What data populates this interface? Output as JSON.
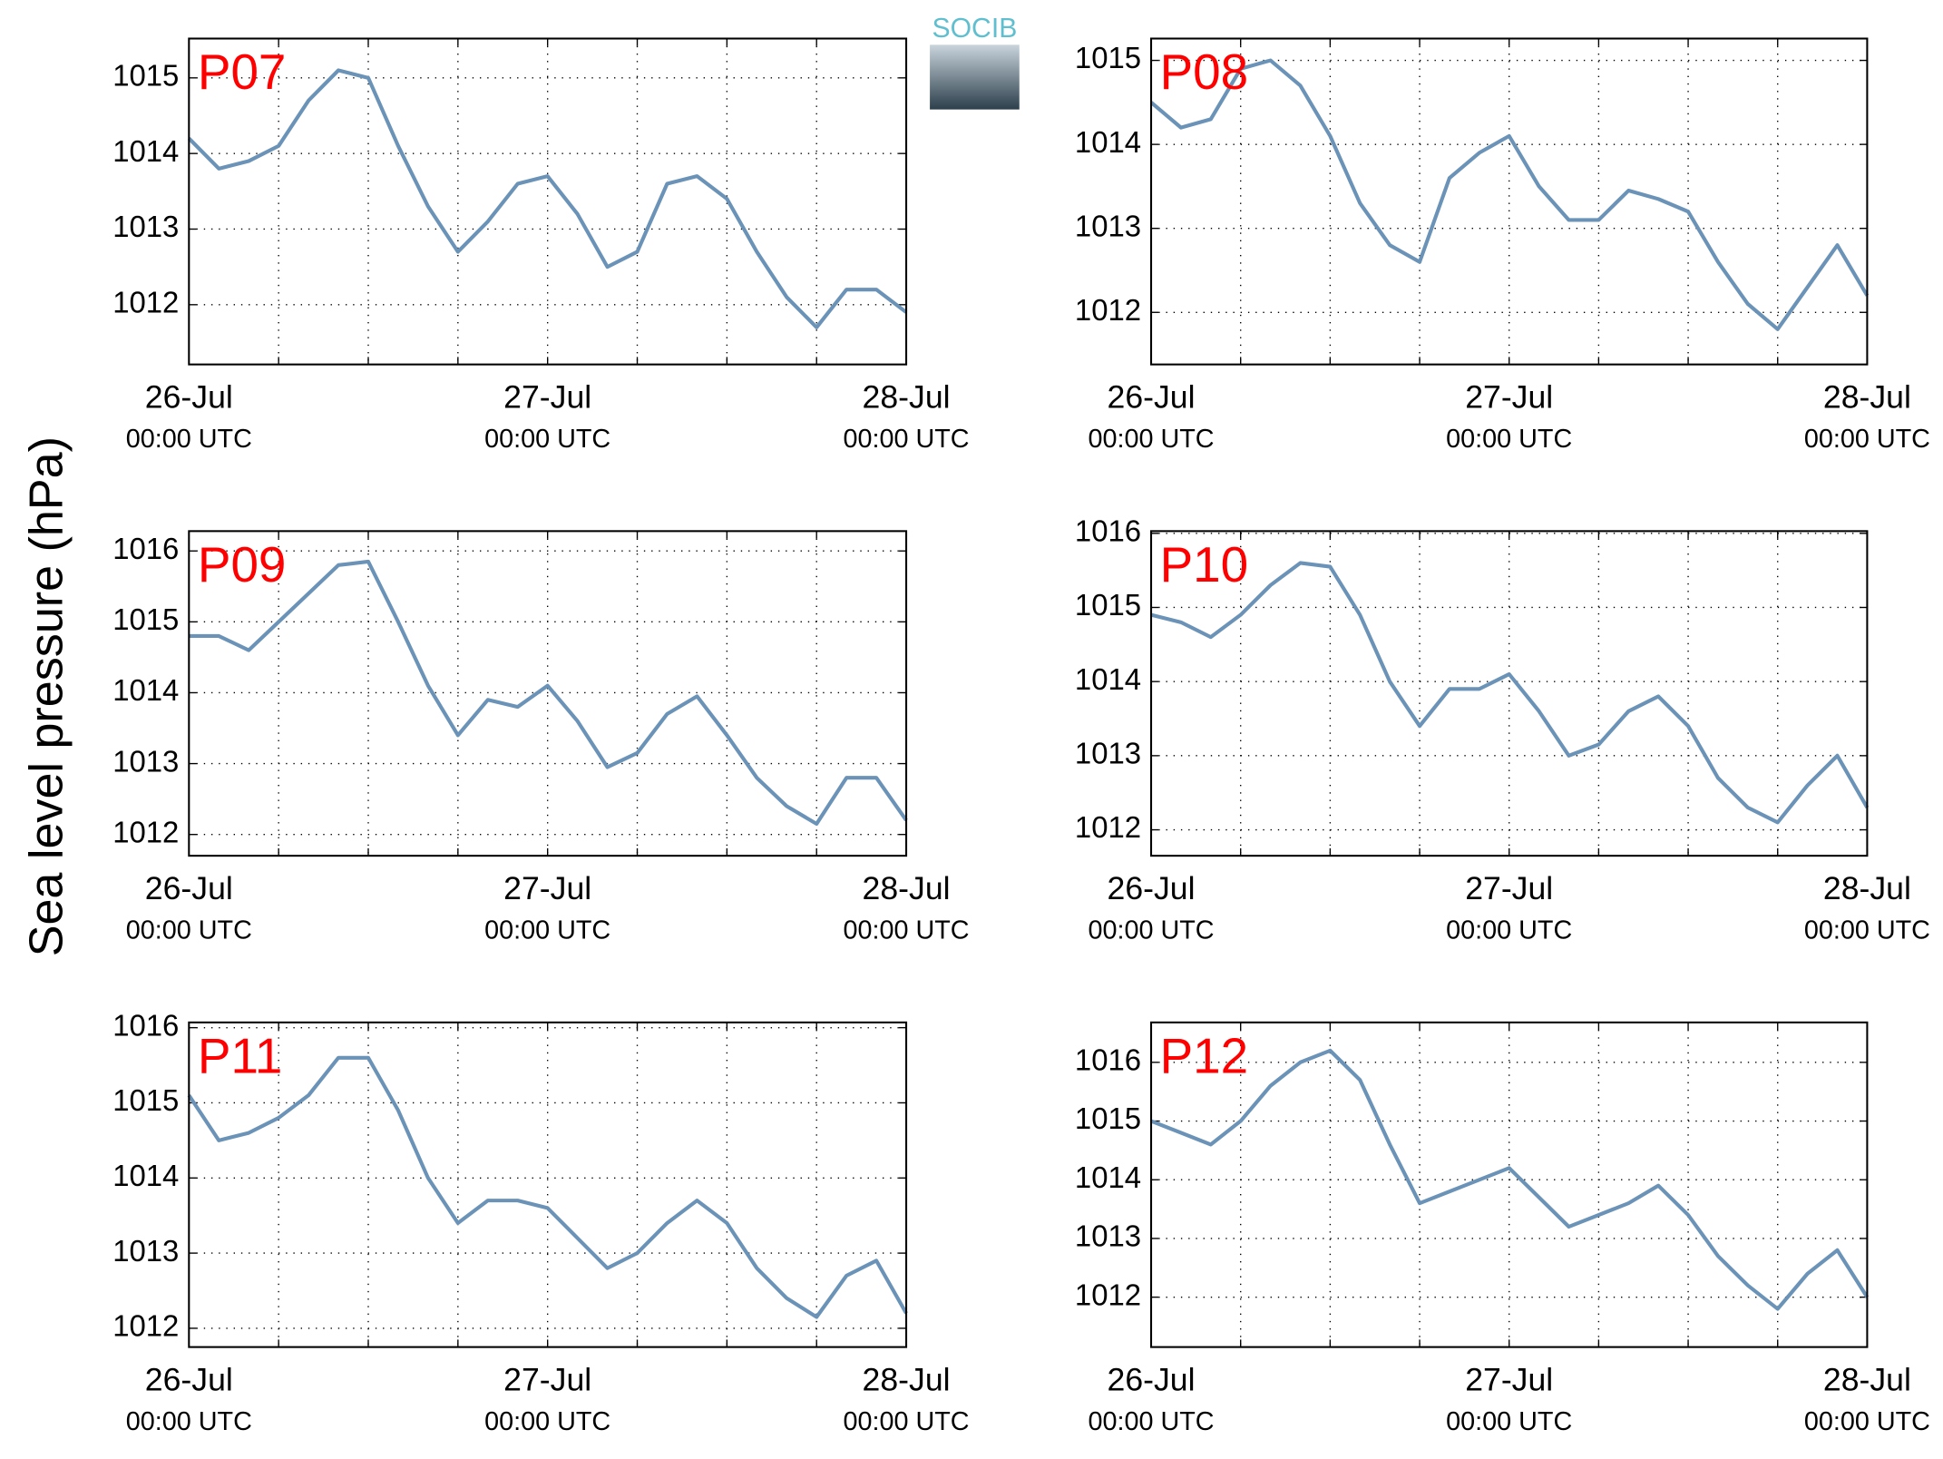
{
  "ylabel": "Sea level pressure (hPa)",
  "logo": "SOCIB",
  "chart_data": [
    {
      "type": "line",
      "title": "P07",
      "grid": true,
      "x": [
        0,
        2,
        4,
        6,
        8,
        10,
        12,
        14,
        16,
        18,
        20,
        22,
        24,
        26,
        28,
        30,
        32,
        34,
        36,
        38,
        40,
        42,
        44,
        46,
        48
      ],
      "series": [
        {
          "name": "P07",
          "color": "#6a93b7",
          "values": [
            1014.2,
            1013.8,
            1013.9,
            1014.1,
            1014.7,
            1015.1,
            1015.0,
            1014.1,
            1013.3,
            1012.7,
            1013.1,
            1013.6,
            1013.7,
            1013.2,
            1012.5,
            1012.7,
            1013.6,
            1013.7,
            1013.4,
            1012.7,
            1012.1,
            1011.7,
            1012.2,
            1012.2,
            1011.9
          ]
        }
      ],
      "xlim": [
        0,
        48
      ],
      "xticks": [
        {
          "value": 0,
          "label": [
            "26-Jul",
            "00:00 UTC"
          ]
        },
        {
          "value": 24,
          "label": [
            "27-Jul",
            "00:00 UTC"
          ]
        },
        {
          "value": 48,
          "label": [
            "28-Jul",
            "00:00 UTC"
          ]
        }
      ],
      "xminorticks": [
        6,
        12,
        18,
        30,
        36,
        42
      ],
      "ylim": [
        1011.21,
        1015.52
      ],
      "yticks": [
        1012,
        1013,
        1014,
        1015
      ]
    },
    {
      "type": "line",
      "title": "P08",
      "grid": true,
      "x": [
        0,
        2,
        4,
        6,
        8,
        10,
        12,
        14,
        16,
        18,
        20,
        22,
        24,
        26,
        28,
        30,
        32,
        34,
        36,
        38,
        40,
        42,
        44,
        46,
        48
      ],
      "series": [
        {
          "name": "P08",
          "color": "#6a93b7",
          "values": [
            1014.5,
            1014.2,
            1014.3,
            1014.9,
            1015.0,
            1014.7,
            1014.1,
            1013.3,
            1012.8,
            1012.6,
            1013.6,
            1013.9,
            1014.1,
            1013.5,
            1013.1,
            1013.1,
            1013.45,
            1013.35,
            1013.2,
            1012.6,
            1012.1,
            1011.8,
            1012.3,
            1012.8,
            1012.2
          ]
        }
      ],
      "xlim": [
        0,
        48
      ],
      "xticks": [
        {
          "value": 0,
          "label": [
            "26-Jul",
            "00:00 UTC"
          ]
        },
        {
          "value": 24,
          "label": [
            "27-Jul",
            "00:00 UTC"
          ]
        },
        {
          "value": 48,
          "label": [
            "28-Jul",
            "00:00 UTC"
          ]
        }
      ],
      "xminorticks": [
        6,
        12,
        18,
        30,
        36,
        42
      ],
      "ylim": [
        1011.38,
        1015.26
      ],
      "yticks": [
        1012,
        1013,
        1014,
        1015
      ]
    },
    {
      "type": "line",
      "title": "P09",
      "grid": true,
      "x": [
        0,
        2,
        4,
        6,
        8,
        10,
        12,
        14,
        16,
        18,
        20,
        22,
        24,
        26,
        28,
        30,
        32,
        34,
        36,
        38,
        40,
        42,
        44,
        46,
        48
      ],
      "series": [
        {
          "name": "P09",
          "color": "#6a93b7",
          "values": [
            1014.8,
            1014.8,
            1014.6,
            1015.0,
            1015.4,
            1015.8,
            1015.85,
            1015.0,
            1014.1,
            1013.4,
            1013.9,
            1013.8,
            1014.1,
            1013.6,
            1012.95,
            1013.15,
            1013.7,
            1013.95,
            1013.4,
            1012.8,
            1012.4,
            1012.15,
            1012.8,
            1012.8,
            1012.2
          ]
        }
      ],
      "xlim": [
        0,
        48
      ],
      "xticks": [
        {
          "value": 0,
          "label": [
            "26-Jul",
            "00:00 UTC"
          ]
        },
        {
          "value": 24,
          "label": [
            "27-Jul",
            "00:00 UTC"
          ]
        },
        {
          "value": 48,
          "label": [
            "28-Jul",
            "00:00 UTC"
          ]
        }
      ],
      "xminorticks": [
        6,
        12,
        18,
        30,
        36,
        42
      ],
      "ylim": [
        1011.7,
        1016.28
      ],
      "yticks": [
        1012,
        1013,
        1014,
        1015,
        1016
      ]
    },
    {
      "type": "line",
      "title": "P10",
      "grid": true,
      "x": [
        0,
        2,
        4,
        6,
        8,
        10,
        12,
        14,
        16,
        18,
        20,
        22,
        24,
        26,
        28,
        30,
        32,
        34,
        36,
        38,
        40,
        42,
        44,
        46,
        48
      ],
      "series": [
        {
          "name": "P10",
          "color": "#6a93b7",
          "values": [
            1014.9,
            1014.8,
            1014.6,
            1014.9,
            1015.3,
            1015.6,
            1015.55,
            1014.9,
            1014.0,
            1013.4,
            1013.9,
            1013.9,
            1014.1,
            1013.6,
            1013.0,
            1013.15,
            1013.6,
            1013.8,
            1013.4,
            1012.7,
            1012.3,
            1012.1,
            1012.6,
            1013.0,
            1012.3
          ]
        }
      ],
      "xlim": [
        0,
        48
      ],
      "xticks": [
        {
          "value": 0,
          "label": [
            "26-Jul",
            "00:00 UTC"
          ]
        },
        {
          "value": 24,
          "label": [
            "27-Jul",
            "00:00 UTC"
          ]
        },
        {
          "value": 48,
          "label": [
            "28-Jul",
            "00:00 UTC"
          ]
        }
      ],
      "xminorticks": [
        6,
        12,
        18,
        30,
        36,
        42
      ],
      "ylim": [
        1011.65,
        1016.03
      ],
      "yticks": [
        1012,
        1013,
        1014,
        1015,
        1016
      ]
    },
    {
      "type": "line",
      "title": "P11",
      "grid": true,
      "x": [
        0,
        2,
        4,
        6,
        8,
        10,
        12,
        14,
        16,
        18,
        20,
        22,
        24,
        26,
        28,
        30,
        32,
        34,
        36,
        38,
        40,
        42,
        44,
        46,
        48
      ],
      "series": [
        {
          "name": "P11",
          "color": "#6a93b7",
          "values": [
            1015.1,
            1014.5,
            1014.6,
            1014.8,
            1015.1,
            1015.6,
            1015.6,
            1014.9,
            1014.0,
            1013.4,
            1013.7,
            1013.7,
            1013.6,
            1013.2,
            1012.8,
            1013.0,
            1013.4,
            1013.7,
            1013.4,
            1012.8,
            1012.4,
            1012.15,
            1012.7,
            1012.9,
            1012.2
          ]
        }
      ],
      "xlim": [
        0,
        48
      ],
      "xticks": [
        {
          "value": 0,
          "label": [
            "26-Jul",
            "00:00 UTC"
          ]
        },
        {
          "value": 24,
          "label": [
            "27-Jul",
            "00:00 UTC"
          ]
        },
        {
          "value": 48,
          "label": [
            "28-Jul",
            "00:00 UTC"
          ]
        }
      ],
      "xminorticks": [
        6,
        12,
        18,
        30,
        36,
        42
      ],
      "ylim": [
        1011.75,
        1016.07
      ],
      "yticks": [
        1012,
        1013,
        1014,
        1015,
        1016
      ]
    },
    {
      "type": "line",
      "title": "P12",
      "grid": true,
      "x": [
        0,
        2,
        4,
        6,
        8,
        10,
        12,
        14,
        16,
        18,
        20,
        22,
        24,
        26,
        28,
        30,
        32,
        34,
        36,
        38,
        40,
        42,
        44,
        46,
        48
      ],
      "series": [
        {
          "name": "P12",
          "color": "#6a93b7",
          "values": [
            1015.0,
            1014.8,
            1014.6,
            1015.0,
            1015.6,
            1016.0,
            1016.2,
            1015.7,
            1014.6,
            1013.6,
            1013.8,
            1014.0,
            1014.2,
            1013.7,
            1013.2,
            1013.4,
            1013.6,
            1013.9,
            1013.4,
            1012.7,
            1012.2,
            1011.8,
            1012.4,
            1012.8,
            1012.0
          ]
        }
      ],
      "xlim": [
        0,
        48
      ],
      "xticks": [
        {
          "value": 0,
          "label": [
            "26-Jul",
            "00:00 UTC"
          ]
        },
        {
          "value": 24,
          "label": [
            "27-Jul",
            "00:00 UTC"
          ]
        },
        {
          "value": 48,
          "label": [
            "28-Jul",
            "00:00 UTC"
          ]
        }
      ],
      "xminorticks": [
        6,
        12,
        18,
        30,
        36,
        42
      ],
      "ylim": [
        1011.15,
        1016.68
      ],
      "yticks": [
        1012,
        1013,
        1014,
        1015,
        1016
      ]
    }
  ]
}
